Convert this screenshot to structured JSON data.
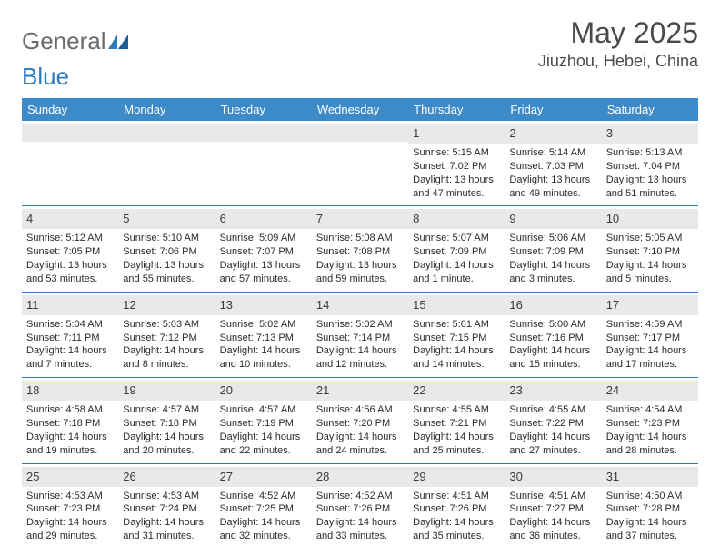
{
  "logo": {
    "word1": "General",
    "word2": "Blue"
  },
  "title": "May 2025",
  "location": "Jiuzhou, Hebei, China",
  "colors": {
    "header_bg": "#3c8ac8",
    "week_border": "#2f7bbf",
    "daynum_bg": "#e9e9e9",
    "text": "#2b2b2b",
    "title_text": "#4a4a4a"
  },
  "dayNames": [
    "Sunday",
    "Monday",
    "Tuesday",
    "Wednesday",
    "Thursday",
    "Friday",
    "Saturday"
  ],
  "weeks": [
    [
      {
        "n": "",
        "sr": "",
        "ss": "",
        "dl": ""
      },
      {
        "n": "",
        "sr": "",
        "ss": "",
        "dl": ""
      },
      {
        "n": "",
        "sr": "",
        "ss": "",
        "dl": ""
      },
      {
        "n": "",
        "sr": "",
        "ss": "",
        "dl": ""
      },
      {
        "n": "1",
        "sr": "Sunrise: 5:15 AM",
        "ss": "Sunset: 7:02 PM",
        "dl": "Daylight: 13 hours and 47 minutes."
      },
      {
        "n": "2",
        "sr": "Sunrise: 5:14 AM",
        "ss": "Sunset: 7:03 PM",
        "dl": "Daylight: 13 hours and 49 minutes."
      },
      {
        "n": "3",
        "sr": "Sunrise: 5:13 AM",
        "ss": "Sunset: 7:04 PM",
        "dl": "Daylight: 13 hours and 51 minutes."
      }
    ],
    [
      {
        "n": "4",
        "sr": "Sunrise: 5:12 AM",
        "ss": "Sunset: 7:05 PM",
        "dl": "Daylight: 13 hours and 53 minutes."
      },
      {
        "n": "5",
        "sr": "Sunrise: 5:10 AM",
        "ss": "Sunset: 7:06 PM",
        "dl": "Daylight: 13 hours and 55 minutes."
      },
      {
        "n": "6",
        "sr": "Sunrise: 5:09 AM",
        "ss": "Sunset: 7:07 PM",
        "dl": "Daylight: 13 hours and 57 minutes."
      },
      {
        "n": "7",
        "sr": "Sunrise: 5:08 AM",
        "ss": "Sunset: 7:08 PM",
        "dl": "Daylight: 13 hours and 59 minutes."
      },
      {
        "n": "8",
        "sr": "Sunrise: 5:07 AM",
        "ss": "Sunset: 7:09 PM",
        "dl": "Daylight: 14 hours and 1 minute."
      },
      {
        "n": "9",
        "sr": "Sunrise: 5:06 AM",
        "ss": "Sunset: 7:09 PM",
        "dl": "Daylight: 14 hours and 3 minutes."
      },
      {
        "n": "10",
        "sr": "Sunrise: 5:05 AM",
        "ss": "Sunset: 7:10 PM",
        "dl": "Daylight: 14 hours and 5 minutes."
      }
    ],
    [
      {
        "n": "11",
        "sr": "Sunrise: 5:04 AM",
        "ss": "Sunset: 7:11 PM",
        "dl": "Daylight: 14 hours and 7 minutes."
      },
      {
        "n": "12",
        "sr": "Sunrise: 5:03 AM",
        "ss": "Sunset: 7:12 PM",
        "dl": "Daylight: 14 hours and 8 minutes."
      },
      {
        "n": "13",
        "sr": "Sunrise: 5:02 AM",
        "ss": "Sunset: 7:13 PM",
        "dl": "Daylight: 14 hours and 10 minutes."
      },
      {
        "n": "14",
        "sr": "Sunrise: 5:02 AM",
        "ss": "Sunset: 7:14 PM",
        "dl": "Daylight: 14 hours and 12 minutes."
      },
      {
        "n": "15",
        "sr": "Sunrise: 5:01 AM",
        "ss": "Sunset: 7:15 PM",
        "dl": "Daylight: 14 hours and 14 minutes."
      },
      {
        "n": "16",
        "sr": "Sunrise: 5:00 AM",
        "ss": "Sunset: 7:16 PM",
        "dl": "Daylight: 14 hours and 15 minutes."
      },
      {
        "n": "17",
        "sr": "Sunrise: 4:59 AM",
        "ss": "Sunset: 7:17 PM",
        "dl": "Daylight: 14 hours and 17 minutes."
      }
    ],
    [
      {
        "n": "18",
        "sr": "Sunrise: 4:58 AM",
        "ss": "Sunset: 7:18 PM",
        "dl": "Daylight: 14 hours and 19 minutes."
      },
      {
        "n": "19",
        "sr": "Sunrise: 4:57 AM",
        "ss": "Sunset: 7:18 PM",
        "dl": "Daylight: 14 hours and 20 minutes."
      },
      {
        "n": "20",
        "sr": "Sunrise: 4:57 AM",
        "ss": "Sunset: 7:19 PM",
        "dl": "Daylight: 14 hours and 22 minutes."
      },
      {
        "n": "21",
        "sr": "Sunrise: 4:56 AM",
        "ss": "Sunset: 7:20 PM",
        "dl": "Daylight: 14 hours and 24 minutes."
      },
      {
        "n": "22",
        "sr": "Sunrise: 4:55 AM",
        "ss": "Sunset: 7:21 PM",
        "dl": "Daylight: 14 hours and 25 minutes."
      },
      {
        "n": "23",
        "sr": "Sunrise: 4:55 AM",
        "ss": "Sunset: 7:22 PM",
        "dl": "Daylight: 14 hours and 27 minutes."
      },
      {
        "n": "24",
        "sr": "Sunrise: 4:54 AM",
        "ss": "Sunset: 7:23 PM",
        "dl": "Daylight: 14 hours and 28 minutes."
      }
    ],
    [
      {
        "n": "25",
        "sr": "Sunrise: 4:53 AM",
        "ss": "Sunset: 7:23 PM",
        "dl": "Daylight: 14 hours and 29 minutes."
      },
      {
        "n": "26",
        "sr": "Sunrise: 4:53 AM",
        "ss": "Sunset: 7:24 PM",
        "dl": "Daylight: 14 hours and 31 minutes."
      },
      {
        "n": "27",
        "sr": "Sunrise: 4:52 AM",
        "ss": "Sunset: 7:25 PM",
        "dl": "Daylight: 14 hours and 32 minutes."
      },
      {
        "n": "28",
        "sr": "Sunrise: 4:52 AM",
        "ss": "Sunset: 7:26 PM",
        "dl": "Daylight: 14 hours and 33 minutes."
      },
      {
        "n": "29",
        "sr": "Sunrise: 4:51 AM",
        "ss": "Sunset: 7:26 PM",
        "dl": "Daylight: 14 hours and 35 minutes."
      },
      {
        "n": "30",
        "sr": "Sunrise: 4:51 AM",
        "ss": "Sunset: 7:27 PM",
        "dl": "Daylight: 14 hours and 36 minutes."
      },
      {
        "n": "31",
        "sr": "Sunrise: 4:50 AM",
        "ss": "Sunset: 7:28 PM",
        "dl": "Daylight: 14 hours and 37 minutes."
      }
    ]
  ]
}
